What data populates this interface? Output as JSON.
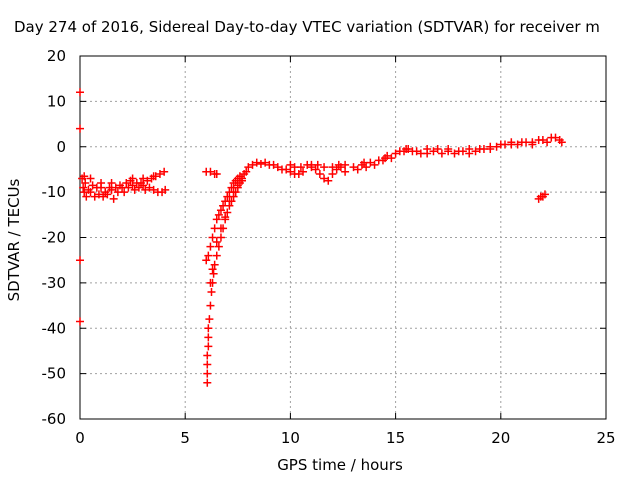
{
  "chart_data": {
    "type": "scatter",
    "title": "Day 274 of 2016, Sidereal Day-to-day VTEC variation (SDTVAR) for receiver m",
    "xlabel": "GPS time / hours",
    "ylabel": "SDTVAR / TECUs",
    "xlim": [
      0,
      25
    ],
    "ylim": [
      -60,
      20
    ],
    "xticks": [
      0,
      5,
      10,
      15,
      20,
      25
    ],
    "yticks": [
      20,
      10,
      0,
      -10,
      -20,
      -30,
      -40,
      -50,
      -60
    ],
    "grid": true,
    "marker": "+",
    "color": "#ff0000",
    "series": [
      {
        "points": [
          [
            0.0,
            12
          ],
          [
            0.0,
            4
          ],
          [
            0.0,
            -25
          ],
          [
            0.0,
            -38.5
          ],
          [
            0.1,
            -7
          ],
          [
            0.15,
            -9
          ],
          [
            0.2,
            -10
          ],
          [
            0.25,
            -8
          ],
          [
            0.3,
            -11
          ],
          [
            0.4,
            -9.5
          ],
          [
            0.5,
            -10
          ],
          [
            0.6,
            -8.5
          ],
          [
            0.7,
            -11
          ],
          [
            0.8,
            -9
          ],
          [
            0.9,
            -10.5
          ],
          [
            1.0,
            -9
          ],
          [
            1.1,
            -11
          ],
          [
            1.2,
            -10
          ],
          [
            1.3,
            -10.5
          ],
          [
            1.4,
            -9
          ],
          [
            1.5,
            -9.5
          ],
          [
            1.6,
            -11.5
          ],
          [
            1.7,
            -9
          ],
          [
            1.8,
            -10
          ],
          [
            1.9,
            -8.5
          ],
          [
            2.0,
            -9
          ],
          [
            2.1,
            -10
          ],
          [
            2.2,
            -8
          ],
          [
            2.3,
            -9
          ],
          [
            2.4,
            -7.5
          ],
          [
            2.5,
            -8.5
          ],
          [
            2.6,
            -9.5
          ],
          [
            2.7,
            -8
          ],
          [
            2.8,
            -9
          ],
          [
            2.9,
            -8
          ],
          [
            3.0,
            -8.5
          ],
          [
            3.1,
            -9.5
          ],
          [
            3.2,
            -7.5
          ],
          [
            3.3,
            -9
          ],
          [
            3.4,
            -7
          ],
          [
            3.5,
            -9.5
          ],
          [
            3.6,
            -6.5
          ],
          [
            3.7,
            -10
          ],
          [
            3.8,
            -6
          ],
          [
            3.9,
            -10
          ],
          [
            4.0,
            -5.5
          ],
          [
            4.05,
            -9.5
          ],
          [
            0.2,
            -6.5
          ],
          [
            0.5,
            -7
          ],
          [
            1.0,
            -8
          ],
          [
            1.5,
            -8
          ],
          [
            2.5,
            -7
          ],
          [
            3.0,
            -7
          ],
          [
            3.5,
            -6.5
          ],
          [
            6.0,
            -5.5
          ],
          [
            6.2,
            -5.5
          ],
          [
            6.4,
            -6
          ],
          [
            6.5,
            -6
          ],
          [
            6.05,
            -52
          ],
          [
            6.05,
            -50
          ],
          [
            6.05,
            -48
          ],
          [
            6.05,
            -46
          ],
          [
            6.1,
            -44
          ],
          [
            6.1,
            -42
          ],
          [
            6.1,
            -40
          ],
          [
            6.15,
            -38
          ],
          [
            6.2,
            -35
          ],
          [
            6.25,
            -32
          ],
          [
            6.3,
            -30
          ],
          [
            6.35,
            -28
          ],
          [
            6.4,
            -26
          ],
          [
            6.5,
            -24
          ],
          [
            6.6,
            -22
          ],
          [
            6.7,
            -20
          ],
          [
            6.8,
            -18
          ],
          [
            6.9,
            -16
          ],
          [
            7.0,
            -14.5
          ],
          [
            7.1,
            -13
          ],
          [
            7.2,
            -12
          ],
          [
            7.3,
            -11
          ],
          [
            7.4,
            -10
          ],
          [
            7.5,
            -9
          ],
          [
            7.6,
            -8
          ],
          [
            7.7,
            -7
          ],
          [
            7.8,
            -6
          ],
          [
            7.9,
            -5.5
          ],
          [
            6.0,
            -25
          ],
          [
            6.1,
            -24
          ],
          [
            6.2,
            -22
          ],
          [
            6.3,
            -20
          ],
          [
            6.4,
            -18
          ],
          [
            6.5,
            -16
          ],
          [
            6.6,
            -15
          ],
          [
            6.7,
            -14
          ],
          [
            6.8,
            -13
          ],
          [
            6.9,
            -12
          ],
          [
            7.0,
            -11
          ],
          [
            7.1,
            -10
          ],
          [
            7.2,
            -9
          ],
          [
            7.3,
            -8
          ],
          [
            7.4,
            -7.5
          ],
          [
            7.5,
            -7
          ],
          [
            7.6,
            -6.5
          ],
          [
            6.2,
            -30
          ],
          [
            6.3,
            -27
          ],
          [
            6.5,
            -21
          ],
          [
            6.7,
            -18
          ],
          [
            6.9,
            -15.5
          ],
          [
            7.1,
            -12
          ],
          [
            7.3,
            -10
          ],
          [
            7.5,
            -8.5
          ],
          [
            7.7,
            -7.5
          ],
          [
            8.0,
            -4.5
          ],
          [
            8.2,
            -4
          ],
          [
            8.4,
            -3.5
          ],
          [
            8.6,
            -3.8
          ],
          [
            8.8,
            -3.5
          ],
          [
            9.0,
            -4
          ],
          [
            9.2,
            -4
          ],
          [
            9.4,
            -4.5
          ],
          [
            9.6,
            -5
          ],
          [
            9.8,
            -5
          ],
          [
            10.0,
            -5.5
          ],
          [
            10.2,
            -6
          ],
          [
            10.4,
            -6
          ],
          [
            10.6,
            -5.5
          ],
          [
            10.0,
            -4
          ],
          [
            10.2,
            -4.5
          ],
          [
            10.5,
            -4.5
          ],
          [
            10.8,
            -4
          ],
          [
            11.0,
            -4.5
          ],
          [
            11.2,
            -5
          ],
          [
            11.4,
            -6
          ],
          [
            11.6,
            -7
          ],
          [
            11.8,
            -7.5
          ],
          [
            11.0,
            -4
          ],
          [
            11.3,
            -4
          ],
          [
            11.6,
            -4.5
          ],
          [
            12.0,
            -4.5
          ],
          [
            12.3,
            -4
          ],
          [
            12.6,
            -4
          ],
          [
            12.0,
            -6
          ],
          [
            12.2,
            -5
          ],
          [
            12.4,
            -4.5
          ],
          [
            12.6,
            -5.5
          ],
          [
            13.0,
            -4.5
          ],
          [
            13.2,
            -5
          ],
          [
            13.4,
            -4
          ],
          [
            13.6,
            -4.5
          ],
          [
            13.8,
            -3.5
          ],
          [
            14.0,
            -4
          ],
          [
            14.2,
            -3
          ],
          [
            14.4,
            -3
          ],
          [
            14.6,
            -2
          ],
          [
            14.8,
            -2.5
          ],
          [
            15.0,
            -1.5
          ],
          [
            15.2,
            -1
          ],
          [
            15.4,
            -1
          ],
          [
            15.6,
            -0.5
          ],
          [
            15.8,
            -1
          ],
          [
            16.0,
            -1
          ],
          [
            16.2,
            -1.5
          ],
          [
            16.5,
            -0.5
          ],
          [
            16.8,
            -1
          ],
          [
            17.0,
            -0.5
          ],
          [
            17.2,
            -1.5
          ],
          [
            17.5,
            -1
          ],
          [
            17.8,
            -1.5
          ],
          [
            18.0,
            -1
          ],
          [
            18.2,
            -1
          ],
          [
            18.5,
            -1.5
          ],
          [
            18.8,
            -1
          ],
          [
            19.0,
            -0.5
          ],
          [
            19.2,
            -0.5
          ],
          [
            19.5,
            0
          ],
          [
            19.8,
            0
          ],
          [
            20.0,
            0.5
          ],
          [
            20.2,
            0.5
          ],
          [
            20.5,
            0.5
          ],
          [
            20.8,
            0.5
          ],
          [
            21.0,
            1
          ],
          [
            21.2,
            1
          ],
          [
            21.5,
            1
          ],
          [
            21.8,
            1.5
          ],
          [
            22.0,
            1.5
          ],
          [
            22.2,
            1
          ],
          [
            22.4,
            2
          ],
          [
            22.6,
            2
          ],
          [
            22.8,
            1.5
          ],
          [
            22.9,
            1
          ],
          [
            13.5,
            -3.5
          ],
          [
            14.5,
            -2.5
          ],
          [
            15.5,
            -0.5
          ],
          [
            16.5,
            -1.5
          ],
          [
            17.5,
            -0.5
          ],
          [
            18.5,
            -0.5
          ],
          [
            19.5,
            -0.5
          ],
          [
            20.5,
            1
          ],
          [
            21.5,
            0.5
          ],
          [
            21.8,
            -11.5
          ],
          [
            21.9,
            -11
          ],
          [
            22.0,
            -11
          ],
          [
            22.1,
            -10.5
          ]
        ]
      }
    ]
  }
}
